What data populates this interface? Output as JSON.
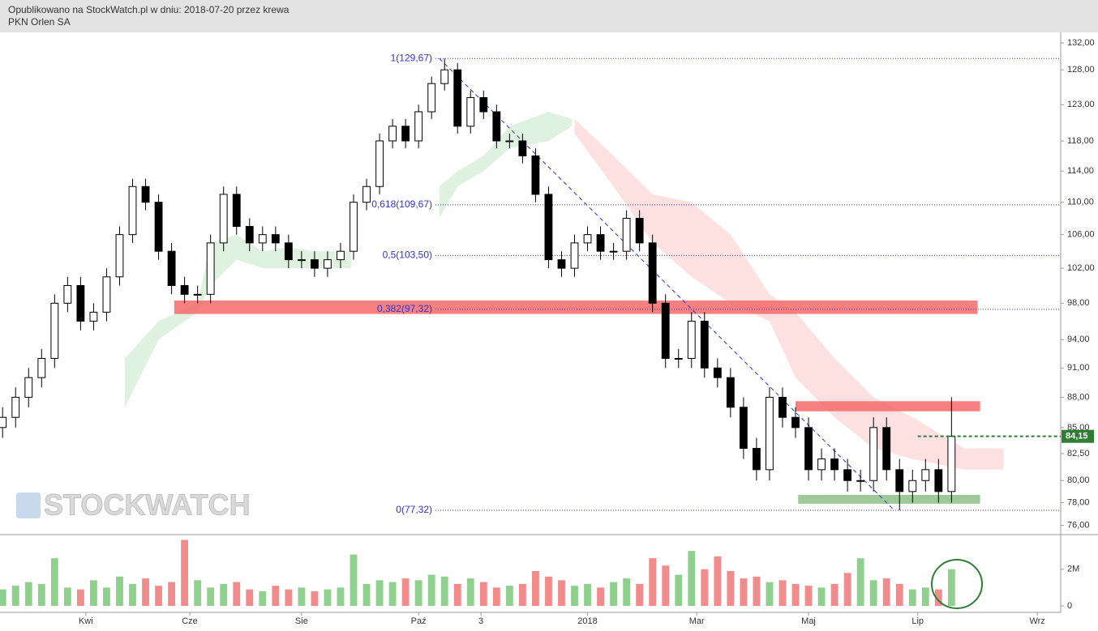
{
  "header": {
    "published": "Opublikowano na StockWatch.pl w dniu: 2018-07-20 przez krewa",
    "instrument": "PKN Orlen SA"
  },
  "chart_data": {
    "type": "candlestick",
    "watermark": "STOCKWATCH",
    "log_scale": true,
    "x": [
      0,
      5,
      10,
      15,
      20,
      25,
      30,
      35,
      40,
      45,
      50,
      55,
      60,
      65,
      70,
      75,
      80,
      85,
      90,
      95,
      100,
      105,
      110,
      115,
      120,
      125,
      130,
      135,
      140,
      145,
      150,
      155,
      160,
      165,
      170,
      175,
      180,
      185,
      190,
      195,
      200,
      205,
      210,
      215,
      220,
      225,
      230,
      235,
      240,
      245,
      250,
      255,
      260,
      265,
      270,
      275,
      280,
      285,
      290,
      295,
      300,
      305,
      310,
      315,
      320,
      325,
      330,
      335,
      340,
      345,
      350,
      355,
      360,
      365
    ],
    "open": [
      85,
      86,
      88,
      90,
      92,
      98,
      100,
      96,
      97,
      101,
      106,
      112,
      110,
      104,
      100,
      99,
      99,
      105,
      111,
      107,
      105,
      106,
      105,
      103,
      103,
      102,
      103,
      104,
      110,
      112,
      118,
      120,
      118,
      122,
      126,
      128,
      120,
      124,
      122,
      118,
      118,
      116,
      111,
      103,
      102,
      105,
      106,
      104,
      104,
      108,
      105,
      98,
      92,
      92,
      96,
      91,
      90,
      87,
      83,
      81,
      88,
      86,
      85,
      81,
      82,
      81,
      80,
      80,
      85,
      81,
      79,
      80,
      81,
      79
    ],
    "high": [
      87,
      89,
      91,
      93,
      99,
      101,
      101,
      98,
      102,
      107,
      113,
      113,
      111,
      105,
      101,
      100,
      106,
      112,
      112,
      108,
      107,
      107,
      106,
      104,
      104,
      104,
      105,
      111,
      113,
      119,
      121,
      121,
      123,
      127,
      129.67,
      129,
      125,
      125,
      123,
      119,
      119,
      117,
      112,
      104,
      106,
      107,
      107,
      105,
      109,
      109,
      106,
      99,
      93,
      97,
      97,
      92,
      91,
      88,
      84,
      89,
      89,
      87,
      86,
      83,
      83,
      82,
      81,
      86,
      86,
      82,
      81,
      82,
      82,
      88
    ],
    "low": [
      84,
      85,
      87,
      89,
      91,
      97,
      95,
      95,
      96,
      100,
      105,
      109,
      103,
      99,
      98,
      98,
      98,
      104,
      106,
      104,
      104,
      104,
      102,
      102,
      101,
      101,
      102,
      103,
      109,
      111,
      117,
      117,
      117,
      121,
      125,
      119,
      119,
      121,
      117,
      117,
      115,
      110,
      102,
      101,
      101,
      104,
      103,
      103,
      103,
      104,
      97,
      91,
      91,
      91,
      90,
      89,
      86,
      82,
      80,
      80,
      85,
      84,
      80,
      80,
      80,
      79,
      79,
      79,
      80,
      77.32,
      78,
      79,
      78,
      78
    ],
    "close": [
      86,
      88,
      90,
      92,
      98,
      100,
      96,
      97,
      101,
      106,
      112,
      110,
      104,
      100,
      99,
      99,
      105,
      111,
      107,
      105,
      106,
      105,
      103,
      103,
      102,
      103,
      104,
      110,
      112,
      118,
      120,
      118,
      122,
      126,
      128,
      120,
      124,
      122,
      118,
      118,
      116,
      111,
      103,
      102,
      105,
      106,
      104,
      104,
      108,
      105,
      98,
      92,
      92,
      96,
      91,
      90,
      87,
      83,
      81,
      88,
      86,
      85,
      81,
      82,
      81,
      80,
      80,
      85,
      81,
      79,
      80,
      81,
      79,
      84.15
    ],
    "volume": [
      900000,
      1100000,
      1300000,
      1200000,
      2600000,
      1000000,
      900000,
      1400000,
      1000000,
      1600000,
      1200000,
      1500000,
      1100000,
      1300000,
      3600000,
      1400000,
      1000000,
      1200000,
      1300000,
      900000,
      800000,
      1100000,
      900000,
      1000000,
      800000,
      900000,
      1000000,
      2800000,
      1200000,
      1400000,
      1300000,
      1500000,
      1400000,
      1700000,
      1600000,
      1200000,
      1500000,
      1300000,
      1000000,
      1100000,
      1200000,
      1900000,
      1600000,
      1400000,
      1100000,
      1200000,
      1000000,
      1300000,
      1500000,
      1200000,
      2600000,
      2200000,
      1700000,
      3000000,
      2000000,
      2700000,
      1900000,
      1500000,
      1600000,
      1300000,
      1400000,
      1200000,
      1100000,
      1000000,
      1200000,
      1800000,
      2600000,
      1400000,
      1500000,
      1200000,
      900000,
      1000000,
      900000,
      2000000
    ],
    "up_color": "#ffffff",
    "down_color": "#000000",
    "volume_up_color": "#8fd08f",
    "volume_down_color": "#f28b8b",
    "xlim": [
      -1,
      407
    ],
    "xticks": [
      {
        "value": 32,
        "label": "Kwi"
      },
      {
        "value": 72,
        "label": "Cze"
      },
      {
        "value": 115,
        "label": "Sie"
      },
      {
        "value": 160,
        "label": "Paź"
      },
      {
        "value": 184,
        "label": "3"
      },
      {
        "value": 225,
        "label": "2018"
      },
      {
        "value": 267,
        "label": "Mar"
      },
      {
        "value": 310,
        "label": "Maj"
      },
      {
        "value": 352,
        "label": "Lip"
      },
      {
        "value": 398,
        "label": "Wrz"
      }
    ],
    "ylim": [
      75.2,
      133.6
    ],
    "yticks": [
      {
        "value": 132,
        "label": "132,00"
      },
      {
        "value": 128,
        "label": "128,00"
      },
      {
        "value": 123,
        "label": "123,00"
      },
      {
        "value": 118,
        "label": "118,00"
      },
      {
        "value": 114,
        "label": "114,00"
      },
      {
        "value": 110,
        "label": "110,00"
      },
      {
        "value": 106,
        "label": "106,00"
      },
      {
        "value": 102,
        "label": "102,00"
      },
      {
        "value": 98,
        "label": "98,00"
      },
      {
        "value": 94,
        "label": "94,00"
      },
      {
        "value": 91,
        "label": "91,00"
      },
      {
        "value": 88,
        "label": "88,00"
      },
      {
        "value": 85,
        "label": "85,00"
      },
      {
        "value": 82.5,
        "label": "82,50"
      },
      {
        "value": 80,
        "label": "80,00"
      },
      {
        "value": 78,
        "label": "78,00"
      },
      {
        "value": 76,
        "label": "76,00"
      }
    ],
    "y2lim": [
      0,
      3800000
    ],
    "y2ticks": [
      {
        "value": 2000000,
        "label": "2M"
      },
      0
    ],
    "fib_levels": [
      {
        "value": 129.67,
        "label": "1(129,67)"
      },
      {
        "value": 109.67,
        "label": "0,618(109,67)"
      },
      {
        "value": 103.5,
        "label": "0,5(103,50)"
      },
      {
        "value": 97.32,
        "label": "0,382(97,32)"
      },
      {
        "value": 77.32,
        "label": "0(77,32)"
      }
    ],
    "fib_color": "#3333cc",
    "zones": [
      {
        "color": "#f46a6a",
        "x": [
          66,
          375
        ],
        "y": [
          96.8,
          98.3
        ]
      },
      {
        "color": "#f46a6a",
        "x": [
          305,
          376
        ],
        "y": [
          86.6,
          87.6
        ]
      },
      {
        "color": "#8fbf8a",
        "x": [
          306,
          376
        ],
        "y": [
          77.9,
          78.7
        ]
      }
    ],
    "trend_line": {
      "color": "#2233cc",
      "x": [
        168,
        343
      ],
      "y": [
        129.67,
        77.32
      ]
    },
    "clouds": [
      {
        "color": "#d9efd9",
        "x": [
          47,
          60,
          75,
          80,
          90,
          100,
          110,
          120,
          134
        ],
        "upper": [
          92,
          96,
          98,
          105,
          106,
          104,
          104.5,
          104,
          104
        ],
        "lower": [
          87,
          94,
          97,
          100,
          103,
          102,
          102,
          102,
          102
        ]
      },
      {
        "color": "#d9efd9",
        "x": [
          168,
          175,
          185,
          195,
          210,
          219
        ],
        "upper": [
          112,
          114,
          116,
          120,
          122,
          121
        ],
        "lower": [
          108,
          112,
          114,
          117,
          118,
          120
        ]
      },
      {
        "color": "#fddcdc",
        "x": [
          220,
          235,
          250,
          265,
          280,
          295,
          305,
          320,
          335,
          350,
          370,
          385
        ],
        "upper": [
          121,
          116,
          111,
          110,
          106,
          99,
          97,
          92,
          88,
          86,
          83,
          83
        ],
        "lower": [
          119,
          112,
          105,
          101,
          98,
          96,
          90,
          86,
          83,
          82,
          81,
          81
        ]
      }
    ],
    "last_price": {
      "value": 84.15,
      "label": "84,15",
      "color": "#2e7d32",
      "from": 352
    }
  }
}
